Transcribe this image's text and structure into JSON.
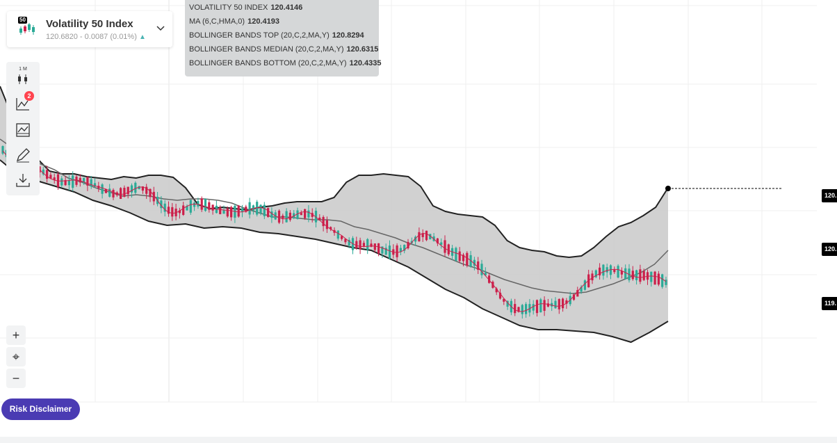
{
  "symbol": {
    "name": "Volatility 50 Index",
    "badge": "50",
    "price_line": "120.6820 - 0.0087 (0.01%)",
    "up_arrow": "▲"
  },
  "tooltip": [
    {
      "label": "VOLATILITY 50 INDEX",
      "value": "120.4146"
    },
    {
      "label": "MA (6,C,HMA,0)",
      "value": "120.4193"
    },
    {
      "label": "BOLLINGER BANDS TOP (20,C,2,MA,Y)",
      "value": "120.8294"
    },
    {
      "label": "BOLLINGER BANDS MEDIAN (20,C,2,MA,Y)",
      "value": "120.6315"
    },
    {
      "label": "BOLLINGER BANDS BOTTOM (20,C,2,MA,Y)",
      "value": "120.4335"
    }
  ],
  "toolbar": {
    "timeframe": "1 M",
    "indicator_count": "2",
    "icons": [
      "candlestick-chart-icon",
      "indicators-icon",
      "templates-icon",
      "drawing-tools-icon",
      "download-icon"
    ]
  },
  "zoom": {
    "in": "+",
    "crosshair": "⌖",
    "out": "−"
  },
  "risk_disclaimer": "Risk Disclaimer",
  "price_labels": [
    "120.",
    "120.",
    "119."
  ],
  "colors": {
    "up": "#2baa97",
    "down": "#cc1f4a",
    "band_fill": "#cccccc",
    "band_line": "#222222",
    "median_line": "#666666",
    "ma_line": "#cc1f4a",
    "accent": "#4a3bb3"
  },
  "chart_data": {
    "type": "candlestick",
    "indicators": [
      "MA (6,C,HMA,0)",
      "BOLLINGER BANDS (20,C,2,MA,Y)"
    ],
    "band_top": [
      124,
      168,
      200,
      228,
      246,
      250,
      250,
      254,
      256,
      258,
      254,
      256,
      252,
      252,
      255,
      270,
      294,
      300,
      298,
      300,
      302,
      298,
      296,
      292,
      290,
      290,
      290,
      284,
      262,
      252,
      252,
      250,
      252,
      254,
      268,
      296,
      304,
      308,
      310,
      312,
      324,
      346,
      356,
      360,
      362,
      368,
      370,
      368,
      356,
      340,
      326,
      320,
      310,
      298,
      270
    ],
    "band_mid": [
      200,
      214,
      228,
      236,
      244,
      256,
      262,
      270,
      276,
      282,
      280,
      282,
      286,
      288,
      286,
      286,
      288,
      292,
      300,
      306,
      312,
      312,
      314,
      316,
      316,
      318,
      326,
      330,
      336,
      342,
      350,
      356,
      364,
      372,
      380,
      386,
      394,
      402,
      408,
      414,
      418,
      420,
      422,
      420,
      414,
      408,
      400,
      392,
      380,
      360
    ],
    "band_bottom": [
      230,
      252,
      260,
      268,
      276,
      288,
      296,
      306,
      318,
      324,
      322,
      328,
      326,
      328,
      334,
      336,
      340,
      344,
      350,
      356,
      360,
      372,
      384,
      400,
      416,
      428,
      444,
      456,
      468,
      474,
      474,
      476,
      478,
      484,
      492,
      478,
      462
    ],
    "last_marker": "black dot at latest close with dashed price line"
  }
}
